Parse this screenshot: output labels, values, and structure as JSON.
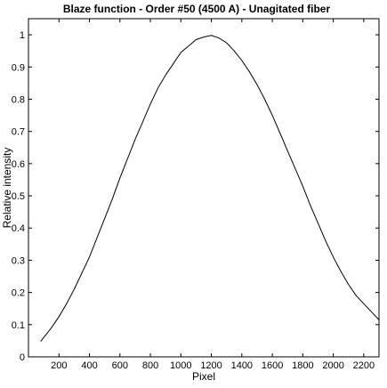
{
  "chart_data": {
    "type": "line",
    "title": "Blaze function - Order #50 (4500 A) - Unagitated fiber",
    "xlabel": "Pixel",
    "ylabel": "Relative intensity",
    "xlim": [
      0,
      2300
    ],
    "ylim": [
      0,
      1.05
    ],
    "xticks": [
      200,
      400,
      600,
      800,
      1000,
      1200,
      1400,
      1600,
      1800,
      2000,
      2200
    ],
    "yticks": [
      0,
      0.1,
      0.2,
      0.3,
      0.4,
      0.5,
      0.6,
      0.7,
      0.8,
      0.9,
      1
    ],
    "grid": false,
    "line_color": "#000000",
    "series": [
      {
        "name": "",
        "x": [
          80,
          100,
          150,
          200,
          250,
          300,
          350,
          400,
          450,
          500,
          550,
          600,
          650,
          700,
          750,
          800,
          850,
          900,
          950,
          1000,
          1050,
          1100,
          1150,
          1200,
          1250,
          1300,
          1350,
          1400,
          1450,
          1500,
          1550,
          1600,
          1650,
          1700,
          1750,
          1800,
          1850,
          1900,
          1950,
          2000,
          2050,
          2100,
          2150,
          2200,
          2250,
          2300
        ],
        "y": [
          0.048,
          0.06,
          0.09,
          0.125,
          0.165,
          0.21,
          0.26,
          0.31,
          0.37,
          0.43,
          0.49,
          0.555,
          0.615,
          0.675,
          0.73,
          0.785,
          0.835,
          0.875,
          0.91,
          0.945,
          0.965,
          0.985,
          0.993,
          0.998,
          0.99,
          0.975,
          0.95,
          0.92,
          0.885,
          0.845,
          0.8,
          0.75,
          0.695,
          0.64,
          0.585,
          0.53,
          0.47,
          0.415,
          0.36,
          0.31,
          0.265,
          0.225,
          0.19,
          0.165,
          0.14,
          0.115
        ]
      }
    ]
  }
}
